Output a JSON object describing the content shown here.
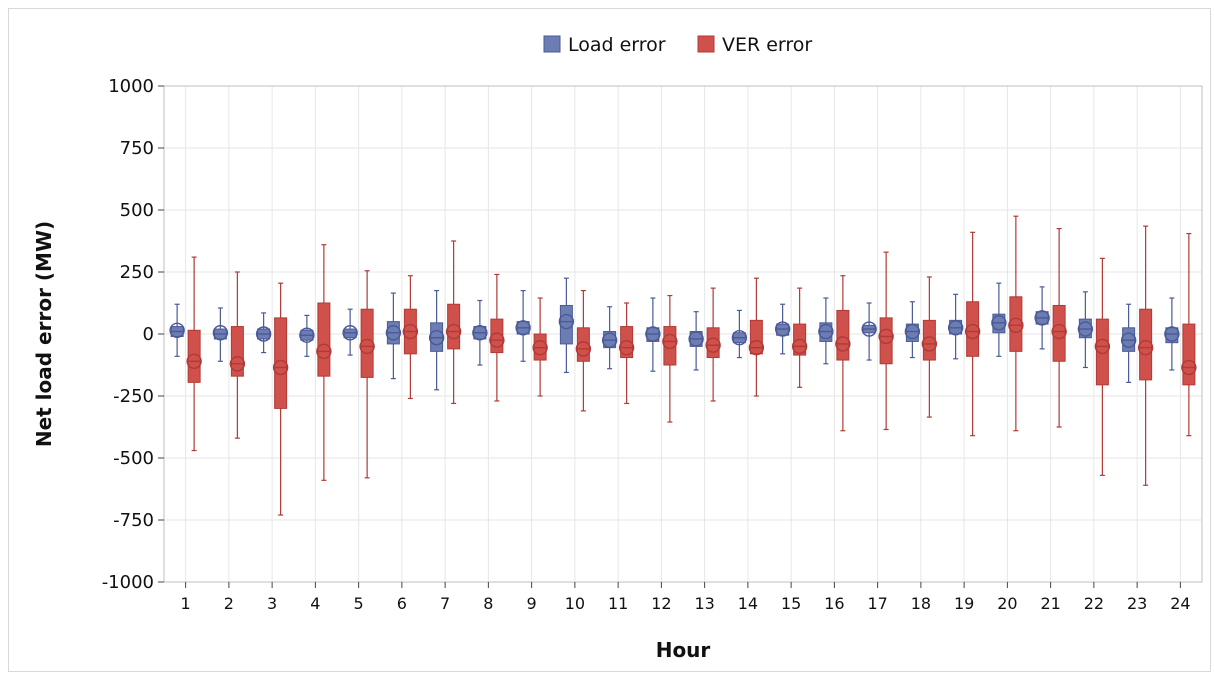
{
  "chart_data": {
    "type": "box",
    "xlabel": "Hour",
    "ylabel": "Net load error (MW)",
    "ylim": [
      -1000,
      1000
    ],
    "yticks": [
      -1000,
      -750,
      -500,
      -250,
      0,
      250,
      500,
      750,
      1000
    ],
    "yticks_labels": [
      "-1000",
      "-750",
      "-500",
      "-250",
      "0",
      "250",
      "500",
      "750",
      "1000"
    ],
    "categories": [
      "1",
      "2",
      "3",
      "4",
      "5",
      "6",
      "7",
      "8",
      "9",
      "10",
      "11",
      "12",
      "13",
      "14",
      "15",
      "16",
      "17",
      "18",
      "19",
      "20",
      "21",
      "22",
      "23",
      "24"
    ],
    "grid": true,
    "legend_position": "top-center",
    "series": [
      {
        "name": "Load error",
        "color": "#6b7db3",
        "edge_color": "#4a5a96",
        "boxes": [
          {
            "whisker_low": -90,
            "q1": -10,
            "median": 10,
            "q3": 30,
            "whisker_high": 120,
            "mean": 15
          },
          {
            "whisker_low": -110,
            "q1": -20,
            "median": 0,
            "q3": 20,
            "whisker_high": 105,
            "mean": 5
          },
          {
            "whisker_low": -75,
            "q1": -20,
            "median": 0,
            "q3": 20,
            "whisker_high": 85,
            "mean": 0
          },
          {
            "whisker_low": -90,
            "q1": -25,
            "median": -5,
            "q3": 15,
            "whisker_high": 75,
            "mean": -5
          },
          {
            "whisker_low": -85,
            "q1": -15,
            "median": 5,
            "q3": 20,
            "whisker_high": 100,
            "mean": 5
          },
          {
            "whisker_low": -180,
            "q1": -40,
            "median": 5,
            "q3": 50,
            "whisker_high": 165,
            "mean": 5
          },
          {
            "whisker_low": -225,
            "q1": -70,
            "median": -15,
            "q3": 45,
            "whisker_high": 175,
            "mean": -15
          },
          {
            "whisker_low": -125,
            "q1": -20,
            "median": 5,
            "q3": 30,
            "whisker_high": 135,
            "mean": 5
          },
          {
            "whisker_low": -110,
            "q1": 0,
            "median": 25,
            "q3": 50,
            "whisker_high": 175,
            "mean": 25
          },
          {
            "whisker_low": -155,
            "q1": -40,
            "median": 50,
            "q3": 115,
            "whisker_high": 225,
            "mean": 50
          },
          {
            "whisker_low": -140,
            "q1": -55,
            "median": -25,
            "q3": 10,
            "whisker_high": 110,
            "mean": -25
          },
          {
            "whisker_low": -150,
            "q1": -30,
            "median": 0,
            "q3": 25,
            "whisker_high": 145,
            "mean": 0
          },
          {
            "whisker_low": -145,
            "q1": -50,
            "median": -20,
            "q3": 10,
            "whisker_high": 90,
            "mean": -20
          },
          {
            "whisker_low": -95,
            "q1": -35,
            "median": -15,
            "q3": 5,
            "whisker_high": 95,
            "mean": -15
          },
          {
            "whisker_low": -80,
            "q1": -5,
            "median": 20,
            "q3": 40,
            "whisker_high": 120,
            "mean": 20
          },
          {
            "whisker_low": -120,
            "q1": -30,
            "median": 10,
            "q3": 45,
            "whisker_high": 145,
            "mean": 10
          },
          {
            "whisker_low": -105,
            "q1": 5,
            "median": 20,
            "q3": 35,
            "whisker_high": 125,
            "mean": 20
          },
          {
            "whisker_low": -95,
            "q1": -30,
            "median": 10,
            "q3": 40,
            "whisker_high": 130,
            "mean": 10
          },
          {
            "whisker_low": -100,
            "q1": 0,
            "median": 25,
            "q3": 55,
            "whisker_high": 160,
            "mean": 25
          },
          {
            "whisker_low": -90,
            "q1": 5,
            "median": 45,
            "q3": 80,
            "whisker_high": 205,
            "mean": 45
          },
          {
            "whisker_low": -60,
            "q1": 40,
            "median": 65,
            "q3": 90,
            "whisker_high": 190,
            "mean": 65
          },
          {
            "whisker_low": -135,
            "q1": -15,
            "median": 20,
            "q3": 60,
            "whisker_high": 170,
            "mean": 20
          },
          {
            "whisker_low": -195,
            "q1": -70,
            "median": -25,
            "q3": 25,
            "whisker_high": 120,
            "mean": -25
          },
          {
            "whisker_low": -145,
            "q1": -35,
            "median": 0,
            "q3": 25,
            "whisker_high": 145,
            "mean": 0
          }
        ]
      },
      {
        "name": "VER error",
        "color": "#d0504b",
        "edge_color": "#b13a36",
        "boxes": [
          {
            "whisker_low": -470,
            "q1": -195,
            "median": -110,
            "q3": 15,
            "whisker_high": 310,
            "mean": -110
          },
          {
            "whisker_low": -420,
            "q1": -170,
            "median": -120,
            "q3": 30,
            "whisker_high": 250,
            "mean": -120
          },
          {
            "whisker_low": -730,
            "q1": -300,
            "median": -135,
            "q3": 65,
            "whisker_high": 205,
            "mean": -135
          },
          {
            "whisker_low": -590,
            "q1": -170,
            "median": -70,
            "q3": 125,
            "whisker_high": 360,
            "mean": -70
          },
          {
            "whisker_low": -580,
            "q1": -175,
            "median": -50,
            "q3": 100,
            "whisker_high": 255,
            "mean": -50
          },
          {
            "whisker_low": -260,
            "q1": -80,
            "median": 10,
            "q3": 100,
            "whisker_high": 235,
            "mean": 10
          },
          {
            "whisker_low": -280,
            "q1": -60,
            "median": 10,
            "q3": 120,
            "whisker_high": 375,
            "mean": 10
          },
          {
            "whisker_low": -270,
            "q1": -75,
            "median": -25,
            "q3": 60,
            "whisker_high": 240,
            "mean": -25
          },
          {
            "whisker_low": -250,
            "q1": -105,
            "median": -55,
            "q3": 0,
            "whisker_high": 145,
            "mean": -55
          },
          {
            "whisker_low": -310,
            "q1": -110,
            "median": -60,
            "q3": 25,
            "whisker_high": 175,
            "mean": -60
          },
          {
            "whisker_low": -280,
            "q1": -95,
            "median": -55,
            "q3": 30,
            "whisker_high": 125,
            "mean": -55
          },
          {
            "whisker_low": -355,
            "q1": -125,
            "median": -30,
            "q3": 30,
            "whisker_high": 155,
            "mean": -30
          },
          {
            "whisker_low": -270,
            "q1": -95,
            "median": -45,
            "q3": 25,
            "whisker_high": 185,
            "mean": -45
          },
          {
            "whisker_low": -250,
            "q1": -80,
            "median": -55,
            "q3": 55,
            "whisker_high": 225,
            "mean": -55
          },
          {
            "whisker_low": -215,
            "q1": -85,
            "median": -50,
            "q3": 40,
            "whisker_high": 185,
            "mean": -50
          },
          {
            "whisker_low": -390,
            "q1": -105,
            "median": -40,
            "q3": 95,
            "whisker_high": 235,
            "mean": -40
          },
          {
            "whisker_low": -385,
            "q1": -120,
            "median": -10,
            "q3": 65,
            "whisker_high": 330,
            "mean": -10
          },
          {
            "whisker_low": -335,
            "q1": -105,
            "median": -40,
            "q3": 55,
            "whisker_high": 230,
            "mean": -40
          },
          {
            "whisker_low": -410,
            "q1": -90,
            "median": 10,
            "q3": 130,
            "whisker_high": 410,
            "mean": 10
          },
          {
            "whisker_low": -390,
            "q1": -70,
            "median": 35,
            "q3": 150,
            "whisker_high": 475,
            "mean": 35
          },
          {
            "whisker_low": -375,
            "q1": -110,
            "median": 10,
            "q3": 115,
            "whisker_high": 425,
            "mean": 10
          },
          {
            "whisker_low": -570,
            "q1": -205,
            "median": -50,
            "q3": 60,
            "whisker_high": 305,
            "mean": -50
          },
          {
            "whisker_low": -610,
            "q1": -185,
            "median": -55,
            "q3": 100,
            "whisker_high": 435,
            "mean": -55
          },
          {
            "whisker_low": -410,
            "q1": -205,
            "median": -135,
            "q3": 40,
            "whisker_high": 405,
            "mean": -135
          }
        ]
      }
    ]
  }
}
